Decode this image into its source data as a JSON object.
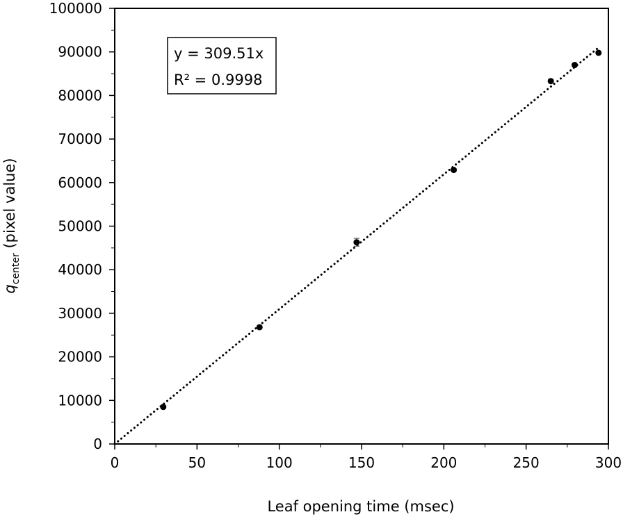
{
  "chart_data": {
    "type": "scatter",
    "xlabel": "Leaf opening time (msec)",
    "ylabel": {
      "symbol": "q",
      "subscript": "center",
      "rest": " (pixel value)"
    },
    "xlim": [
      0,
      300
    ],
    "ylim": [
      0,
      100000
    ],
    "x_ticks": [
      0,
      50,
      100,
      150,
      200,
      250,
      300
    ],
    "y_ticks": [
      0,
      10000,
      20000,
      30000,
      40000,
      50000,
      60000,
      70000,
      80000,
      90000,
      100000
    ],
    "x_tick_labels": [
      "0",
      "50",
      "100",
      "150",
      "200",
      "250",
      "300"
    ],
    "y_tick_labels": [
      "0",
      "10000",
      "20000",
      "30000",
      "40000",
      "50000",
      "60000",
      "70000",
      "80000",
      "90000",
      "100000"
    ],
    "points": [
      {
        "x": 29.5,
        "y": 8500,
        "err": 300
      },
      {
        "x": 88,
        "y": 26800,
        "err": 300
      },
      {
        "x": 147,
        "y": 46300,
        "err": 900
      },
      {
        "x": 206,
        "y": 62900,
        "err": 300
      },
      {
        "x": 265,
        "y": 83300,
        "err": 300
      },
      {
        "x": 279.5,
        "y": 87000,
        "err": 300
      },
      {
        "x": 294,
        "y": 89800,
        "err": 300
      }
    ],
    "trendline": {
      "slope": 309.51,
      "intercept": 0,
      "x_range": [
        0,
        294
      ],
      "style": "dotted"
    },
    "annotation": {
      "line1": "y = 309.51x",
      "line2": "R² = 0.9998",
      "placement": "top-left"
    },
    "grid": false,
    "legend": "none",
    "colors": {
      "points": "#000000",
      "line": "#000000"
    }
  }
}
